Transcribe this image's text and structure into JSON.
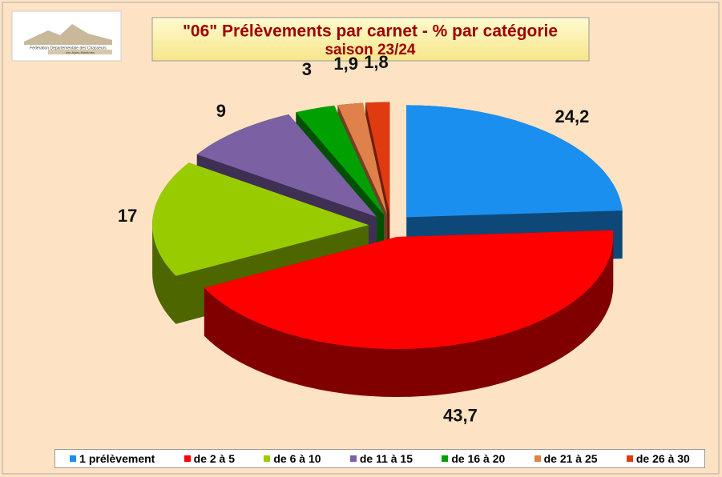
{
  "chart_data": {
    "type": "pie3d",
    "title": "\"06\" Prélèvements par carnet - % par catégorie",
    "subtitle": "saison 23/24",
    "logo_text": [
      "Fédération Départementale des Chasseurs",
      "des Alpes-Maritimes"
    ],
    "categories": [
      "1 prélèvement",
      "de 2 à 5",
      "de 6 à 10",
      "de 11 à 15",
      "de 16 à 20",
      "de 21 à 25",
      "de 26 à 30"
    ],
    "values": [
      24.2,
      43.7,
      17,
      9,
      3,
      1.9,
      1.8
    ],
    "value_labels": [
      "24,2",
      "43,7",
      "17",
      "9",
      "3",
      "1,9",
      "1,8"
    ],
    "colors": [
      "#1a8ff0",
      "#ff0000",
      "#99cc00",
      "#7b60a3",
      "#00a000",
      "#e0804a",
      "#e03a10"
    ],
    "legend": "bottom"
  }
}
